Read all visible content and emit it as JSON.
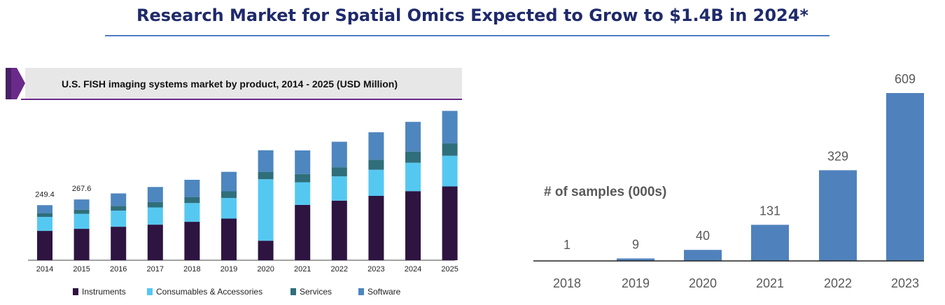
{
  "header": {
    "title": "Research Market for Spatial Omics Expected to Grow to $1.4B in 2024*"
  },
  "colors": {
    "title": "#1f2a6b",
    "rule": "#4f7ec2",
    "instruments": "#2e1440",
    "consumables": "#55c8f2",
    "services": "#2f6f7b",
    "software": "#4e86bf",
    "right_bar": "#4f81bd",
    "header_band": "#e7e7e7",
    "logo_purple": "#6a2a8a"
  },
  "chart_data": [
    {
      "type": "bar",
      "stacked": true,
      "title": "U.S. FISH imaging systems market by product, 2014 - 2025 (USD Million)",
      "categories": [
        "2014",
        "2015",
        "2016",
        "2017",
        "2018",
        "2019",
        "2020",
        "2021",
        "2022",
        "2023",
        "2024",
        "2025"
      ],
      "series": [
        {
          "name": "Instruments",
          "values": [
            155,
            166,
            177,
            188,
            203,
            220,
            103,
            292,
            315,
            340,
            365,
            390
          ]
        },
        {
          "name": "Consumables & Accessories",
          "values": [
            74,
            79,
            85,
            91,
            99,
            109,
            325,
            120,
            128,
            138,
            150,
            162
          ]
        },
        {
          "name": "Services",
          "values": [
            20,
            22,
            25,
            28,
            32,
            35,
            39,
            43,
            48,
            53,
            59,
            65
          ]
        },
        {
          "name": "Software",
          "values": [
            42,
            54,
            66,
            80,
            91,
            103,
            114,
            125,
            135,
            145,
            157,
            172
          ]
        }
      ],
      "data_labels": [
        {
          "category": "2014",
          "text": "249.4"
        },
        {
          "category": "2015",
          "text": "267.6"
        }
      ],
      "ylim": [
        0,
        850
      ],
      "legend": "bottom",
      "grid": false
    },
    {
      "type": "bar",
      "title": "# of samples (000s)",
      "categories": [
        "2018",
        "2019",
        "2020",
        "2021",
        "2022",
        "2023"
      ],
      "values": [
        1,
        9,
        40,
        131,
        329,
        609
      ],
      "ylim": [
        0,
        609
      ],
      "grid": false,
      "legend": "none"
    }
  ]
}
